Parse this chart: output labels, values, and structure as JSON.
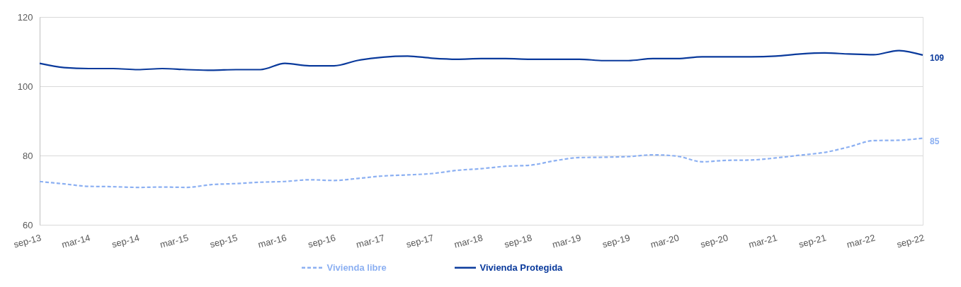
{
  "chart_data": {
    "type": "line",
    "categories": [
      "sep-13",
      null,
      "mar-14",
      null,
      "sep-14",
      null,
      "mar-15",
      null,
      "sep-15",
      null,
      "mar-16",
      null,
      "sep-16",
      null,
      "mar-17",
      null,
      "sep-17",
      null,
      "mar-18",
      null,
      "sep-18",
      null,
      "mar-19",
      null,
      "sep-19",
      null,
      "mar-20",
      null,
      "sep-20",
      null,
      "mar-21",
      null,
      "sep-21",
      null,
      "mar-22",
      null,
      "sep-22"
    ],
    "series": [
      {
        "name": "Vivienda libre",
        "color": "#8cb0f2",
        "line_style": "dashed",
        "values": [
          72.5,
          71.8,
          71.1,
          71.0,
          70.8,
          70.9,
          70.8,
          71.6,
          71.9,
          72.3,
          72.5,
          73.0,
          72.8,
          73.4,
          74.1,
          74.4,
          74.8,
          75.7,
          76.2,
          76.9,
          77.2,
          78.5,
          79.4,
          79.5,
          79.7,
          80.2,
          79.8,
          78.2,
          78.6,
          78.7,
          79.3,
          80.1,
          80.9,
          82.5,
          84.3,
          84.4,
          85
        ],
        "value_labels": [
          null,
          null,
          null,
          null,
          null,
          null,
          null,
          null,
          null,
          null,
          null,
          null,
          null,
          null,
          null,
          null,
          null,
          null,
          null,
          null,
          null,
          null,
          null,
          null,
          null,
          null,
          null,
          null,
          null,
          null,
          null,
          null,
          null,
          null,
          null,
          null,
          "85"
        ]
      },
      {
        "name": "Vivienda Protegida",
        "color": "#0a3a9c",
        "line_style": "solid",
        "values": [
          106.6,
          105.4,
          105.1,
          105.1,
          104.8,
          105.1,
          104.8,
          104.6,
          104.8,
          104.8,
          106.6,
          105.9,
          105.9,
          107.5,
          108.4,
          108.7,
          108.1,
          107.8,
          108.0,
          108.0,
          107.8,
          107.8,
          107.8,
          107.4,
          107.4,
          108.0,
          108.0,
          108.5,
          108.5,
          108.5,
          108.7,
          109.3,
          109.6,
          109.3,
          109.1,
          110.3,
          109
        ],
        "value_labels": [
          null,
          null,
          null,
          null,
          null,
          null,
          null,
          null,
          null,
          null,
          null,
          null,
          null,
          null,
          null,
          null,
          null,
          null,
          null,
          null,
          null,
          null,
          null,
          null,
          null,
          null,
          null,
          null,
          null,
          null,
          null,
          null,
          null,
          null,
          null,
          null,
          "109"
        ]
      }
    ],
    "ylim": [
      60,
      120
    ],
    "yticks": [
      60,
      80,
      100,
      120
    ],
    "grid": "y",
    "legend": "bottom"
  }
}
